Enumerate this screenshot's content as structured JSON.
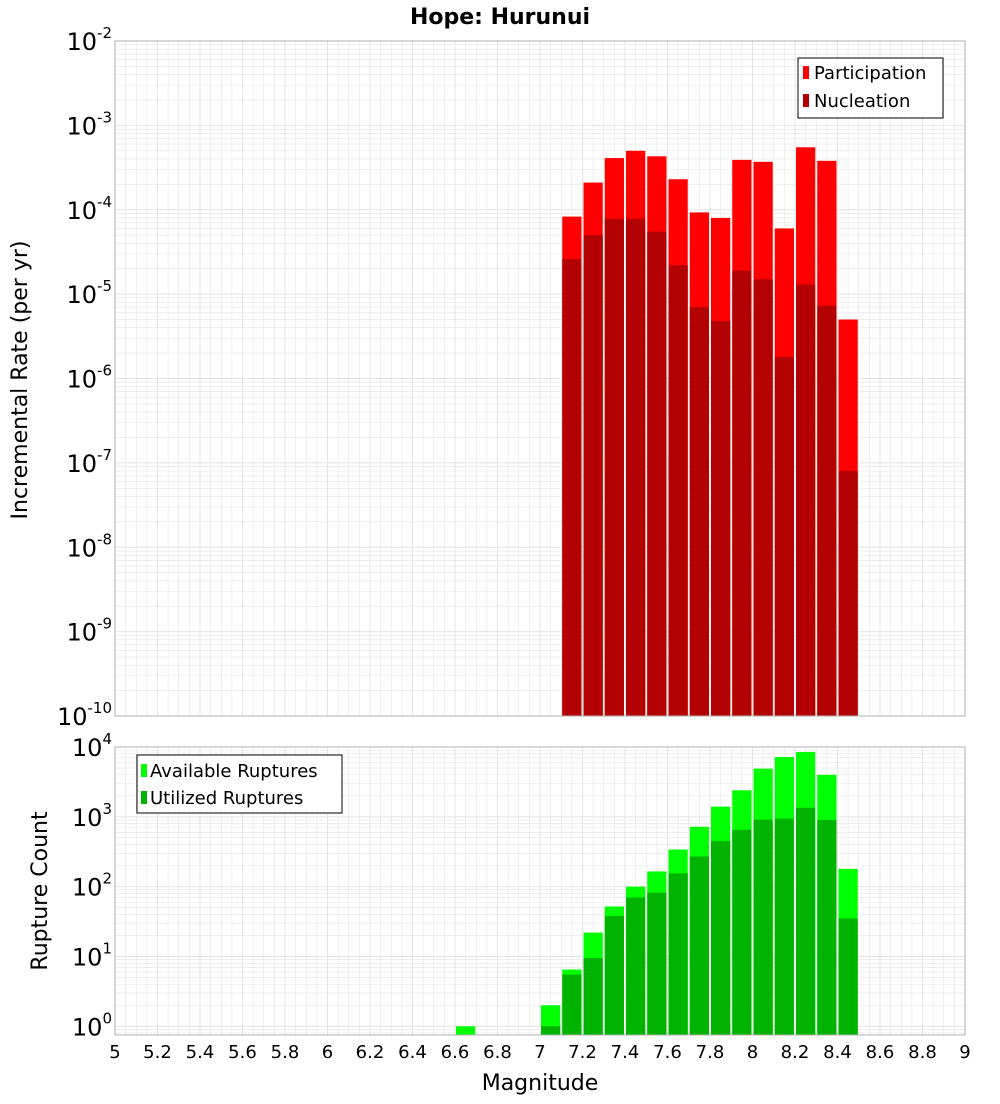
{
  "title": "Hope: Hurunui",
  "colors": {
    "participation": "#ff0000",
    "nucleation": "#b30000",
    "available": "#00ff00",
    "utilized": "#00b300",
    "grid": "#e4e4e4",
    "frame": "#b0b0b0"
  },
  "chart_data": [
    {
      "type": "bar",
      "scale": "log",
      "ylabel": "Incremental Rate (per yr)",
      "ylim": [
        1e-10,
        0.01
      ],
      "y_tick_labels": [
        {
          "base": "10",
          "exp": "-10"
        },
        {
          "base": "10",
          "exp": "-9"
        },
        {
          "base": "10",
          "exp": "-8"
        },
        {
          "base": "10",
          "exp": "-7"
        },
        {
          "base": "10",
          "exp": "-6"
        },
        {
          "base": "10",
          "exp": "-5"
        },
        {
          "base": "10",
          "exp": "-4"
        },
        {
          "base": "10",
          "exp": "-3"
        },
        {
          "base": "10",
          "exp": "-2"
        }
      ],
      "legend_position": "top-right",
      "legend": [
        "Participation",
        "Nucleation"
      ],
      "x": [
        7.15,
        7.25,
        7.35,
        7.45,
        7.55,
        7.65,
        7.75,
        7.85,
        7.95,
        8.05,
        8.15,
        8.25,
        8.35,
        8.45
      ],
      "series": [
        {
          "name": "Participation",
          "values": [
            8.3e-05,
            0.00021,
            0.00041,
            0.0005,
            0.00043,
            0.00023,
            9.3e-05,
            8e-05,
            0.00039,
            0.00037,
            6e-05,
            0.00055,
            0.00038,
            5e-06
          ]
        },
        {
          "name": "Nucleation",
          "values": [
            2.6e-05,
            5e-05,
            7.8e-05,
            7.8e-05,
            5.5e-05,
            2.2e-05,
            7e-06,
            4.8e-06,
            1.9e-05,
            1.5e-05,
            1.8e-06,
            1.3e-05,
            7.3e-06,
            8e-08
          ]
        }
      ]
    },
    {
      "type": "bar",
      "scale": "log",
      "ylabel": "Rupture Count",
      "xlabel": "Magnitude",
      "ylim": [
        0.75,
        10000
      ],
      "y_tick_labels": [
        {
          "base": "10",
          "exp": "0"
        },
        {
          "base": "10",
          "exp": "1"
        },
        {
          "base": "10",
          "exp": "2"
        },
        {
          "base": "10",
          "exp": "3"
        },
        {
          "base": "10",
          "exp": "4"
        }
      ],
      "legend_position": "top-left",
      "legend": [
        "Available Ruptures",
        "Utilized Ruptures"
      ],
      "xlim": [
        5,
        9
      ],
      "x_tick_labels": [
        "5",
        "5.2",
        "5.4",
        "5.6",
        "5.8",
        "6",
        "6.2",
        "6.4",
        "6.6",
        "6.8",
        "7",
        "7.2",
        "7.4",
        "7.6",
        "7.8",
        "8",
        "8.2",
        "8.4",
        "8.6",
        "8.8",
        "9"
      ],
      "x": [
        6.65,
        7.05,
        7.15,
        7.25,
        7.35,
        7.45,
        7.55,
        7.65,
        7.75,
        7.85,
        7.95,
        8.05,
        8.15,
        8.25,
        8.35,
        8.45
      ],
      "series": [
        {
          "name": "Available Ruptures",
          "values": [
            1,
            2,
            6.5,
            22,
            52,
            100,
            165,
            340,
            720,
            1400,
            2400,
            4900,
            7200,
            8500,
            4000,
            180
          ]
        },
        {
          "name": "Utilized Ruptures",
          "values": [
            0,
            1,
            5.5,
            9.5,
            38,
            70,
            82,
            155,
            270,
            450,
            650,
            910,
            940,
            1350,
            900,
            35
          ]
        }
      ]
    }
  ]
}
